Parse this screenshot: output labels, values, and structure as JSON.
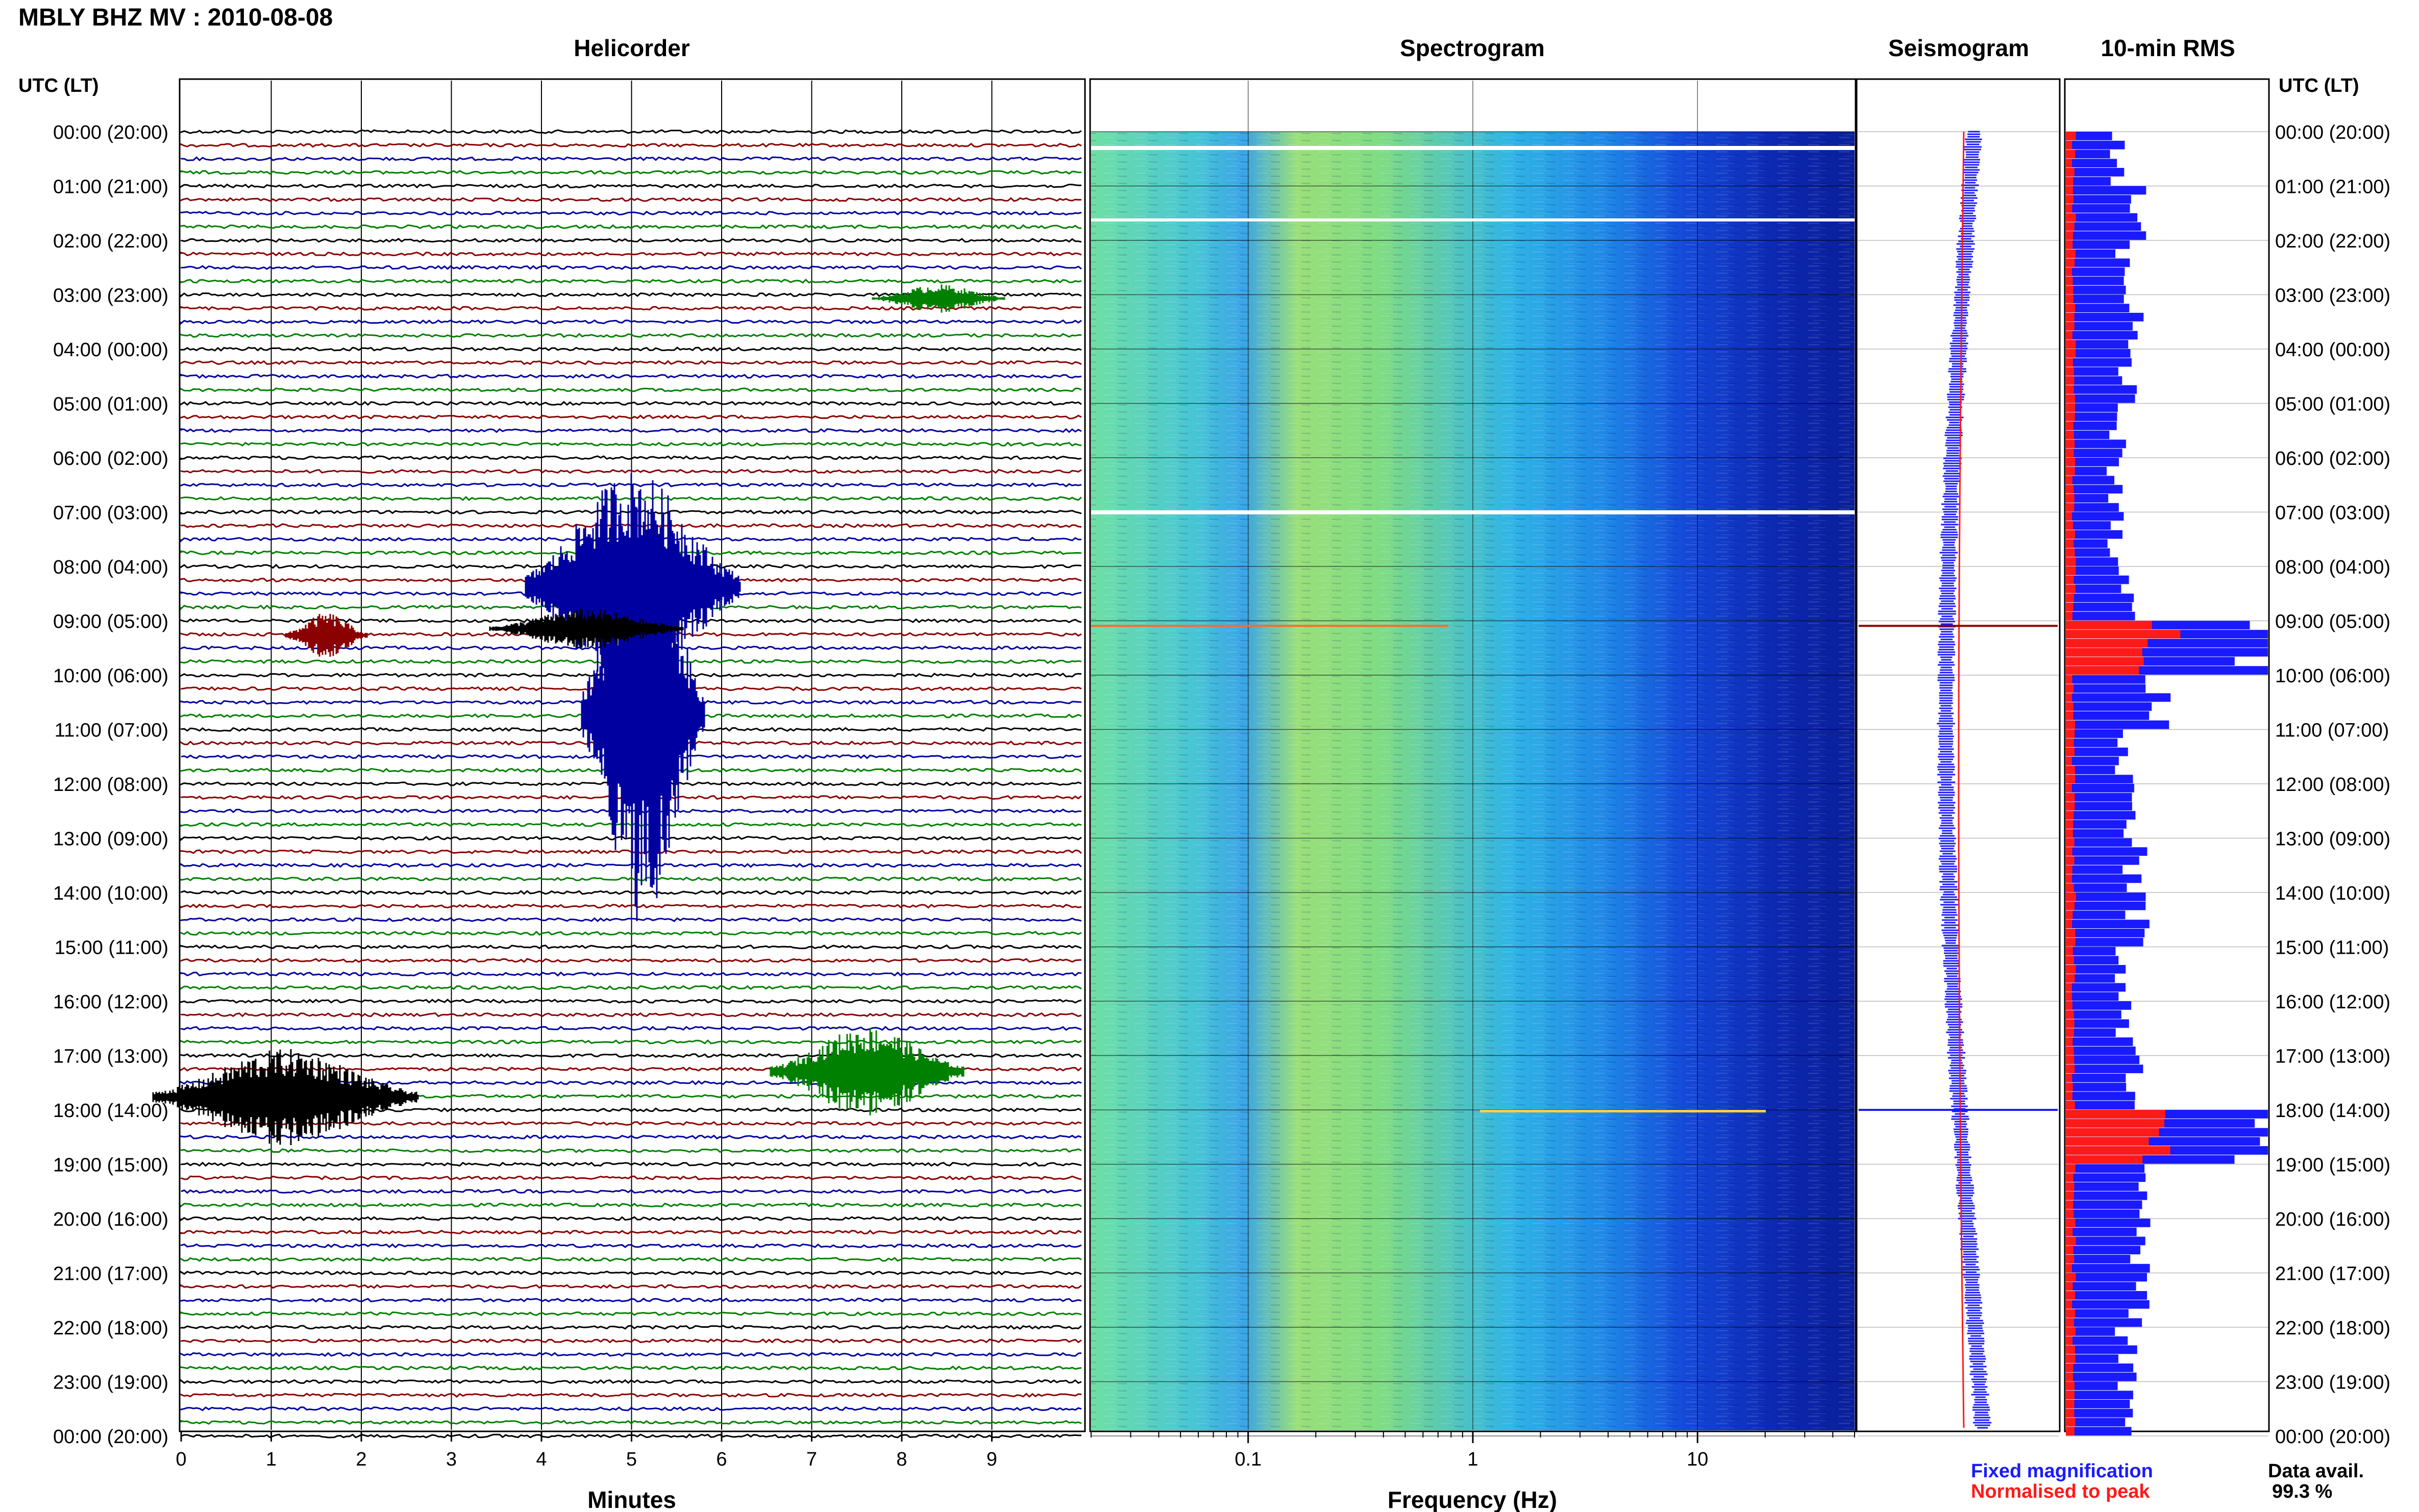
{
  "header": {
    "title": "MBLY BHZ MV : 2010-08-08",
    "utc_label_left": "UTC (LT)",
    "utc_label_right": "UTC (LT)"
  },
  "panels": {
    "helicorder": "Helicorder",
    "spectrogram": "Spectrogram",
    "seismogram": "Seismogram",
    "rms": "10-min RMS"
  },
  "time_labels": [
    "00:00 (20:00)",
    "01:00 (21:00)",
    "02:00 (22:00)",
    "03:00 (23:00)",
    "04:00 (00:00)",
    "05:00 (01:00)",
    "06:00 (02:00)",
    "07:00 (03:00)",
    "08:00 (04:00)",
    "09:00 (05:00)",
    "10:00 (06:00)",
    "11:00 (07:00)",
    "12:00 (08:00)",
    "13:00 (09:00)",
    "14:00 (10:00)",
    "15:00 (11:00)",
    "16:00 (12:00)",
    "17:00 (13:00)",
    "18:00 (14:00)",
    "19:00 (15:00)",
    "20:00 (16:00)",
    "21:00 (17:00)",
    "22:00 (18:00)",
    "23:00 (19:00)",
    "00:00 (20:00)"
  ],
  "legend": {
    "fixed": "Fixed magnification",
    "normalised": "Normalised to peak",
    "data_avail_label": "Data avail.",
    "data_avail_value": "99.3 %",
    "fixed_color": "#1a1aff",
    "normalised_color": "#ff1a1a"
  },
  "chart_data": [
    {
      "type": "line",
      "title": "Helicorder",
      "xlabel": "Minutes",
      "x_ticks": [
        "0",
        "1",
        "2",
        "3",
        "4",
        "5",
        "6",
        "7",
        "8",
        "9"
      ],
      "xlim": [
        0,
        10
      ],
      "trace_colors": [
        "#000000",
        "#8b0000",
        "#0000a0",
        "#008000"
      ],
      "events": [
        {
          "time": "09:00",
          "minute": 1.5,
          "amplitude": "moderate"
        },
        {
          "time": "09:00",
          "minute": 5.0,
          "amplitude": "large"
        },
        {
          "time": "18:00",
          "minute": 1.2,
          "amplitude": "large"
        },
        {
          "time": "18:00",
          "minute": 7.5,
          "amplitude": "large"
        }
      ]
    },
    {
      "type": "heatmap",
      "title": "Spectrogram",
      "xlabel": "Frequency (Hz)",
      "x_scale": "log",
      "x_ticks": [
        "0.1",
        "1",
        "10"
      ],
      "xlim": [
        0.02,
        50
      ]
    },
    {
      "type": "line",
      "title": "Seismogram",
      "series": [
        {
          "name": "Fixed magnification",
          "color": "#1a1aff"
        },
        {
          "name": "Normalised to peak",
          "color": "#ff1a1a"
        }
      ]
    },
    {
      "type": "bar",
      "title": "10-min RMS",
      "series": [
        {
          "name": "Fixed magnification",
          "color": "#1a1aff"
        },
        {
          "name": "Normalised to peak",
          "color": "#ff1a1a"
        }
      ],
      "rms_hourly": [
        0.25,
        0.35,
        0.3,
        0.35,
        0.3,
        0.25,
        0.25,
        0.25,
        0.3,
        1.0,
        0.45,
        0.3,
        0.3,
        0.35,
        0.35,
        0.3,
        0.3,
        0.35,
        1.0,
        0.45,
        0.35,
        0.35,
        0.3,
        0.3
      ]
    }
  ]
}
